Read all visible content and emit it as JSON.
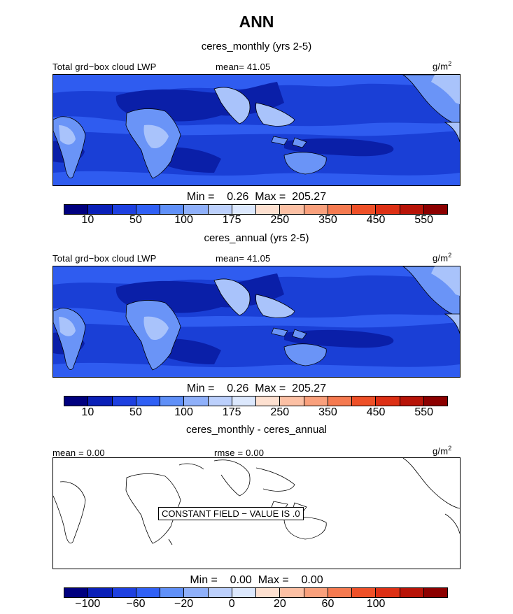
{
  "title": "ANN",
  "panels": [
    {
      "subtitle": "ceres_monthly (yrs 2-5)",
      "field_label": "Total grd−box cloud LWP",
      "stat_label": "mean=  41.05",
      "units": "g/m",
      "units_exp": "2",
      "minmax": "Min =    0.26  Max =  205.27"
    },
    {
      "subtitle": "ceres_annual (yrs 2-5)",
      "field_label": "Total grd−box cloud LWP",
      "stat_label": "mean=  41.05",
      "units": "g/m",
      "units_exp": "2",
      "minmax": "Min =    0.26  Max =  205.27"
    },
    {
      "subtitle": "ceres_monthly - ceres_annual",
      "field_label": "mean =    0.00",
      "stat_label": "rmse =    0.00",
      "units": "g/m",
      "units_exp": "2",
      "minmax": "Min =    0.00  Max =    0.00",
      "constant_note": "CONSTANT FIELD − VALUE IS .0"
    }
  ],
  "colorbar_abs": {
    "colors": [
      "#00007f",
      "#0a20b8",
      "#1e40e0",
      "#3060f5",
      "#6090f8",
      "#8fb0fa",
      "#bcd0fc",
      "#dce8fd",
      "#fde0d0",
      "#fcc0a4",
      "#f9a07c",
      "#f57a50",
      "#ee5028",
      "#dd3015",
      "#b81408",
      "#8c0000"
    ],
    "ticks": [
      "10",
      "50",
      "100",
      "175",
      "250",
      "350",
      "450",
      "550"
    ]
  },
  "colorbar_diff": {
    "colors": [
      "#00007f",
      "#0a20b8",
      "#1e40e0",
      "#3060f5",
      "#6090f8",
      "#8fb0fa",
      "#bcd0fc",
      "#dce8fd",
      "#fde0d0",
      "#fcc0a4",
      "#f9a07c",
      "#f57a50",
      "#ee5028",
      "#dd3015",
      "#b81408",
      "#8c0000"
    ],
    "ticks": [
      "−100",
      "−60",
      "−20",
      "0",
      "20",
      "60",
      "100"
    ]
  },
  "map_colors": {
    "ocean": "#1a3fd6",
    "deep": "#0a1fa8",
    "mid": "#2f5cf0",
    "light": "#6a94f7",
    "pale": "#a9c3fb",
    "coast": "#000000"
  }
}
